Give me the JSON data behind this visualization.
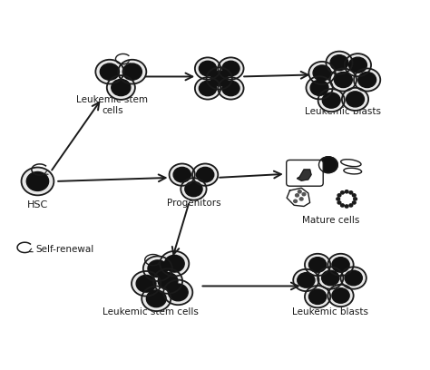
{
  "background_color": "#ffffff",
  "text_color": "#1a1a1a",
  "cell_outline_color": "#1a1a1a",
  "cell_fill_dark": "#111111",
  "cell_fill_mid": "#555555",
  "cell_halo": "#e8e8e8",
  "arrow_color": "#1a1a1a",
  "labels": {
    "hsc": "HSC",
    "leukemic_stem_top": "Leukemic stem\ncells",
    "leukemic_blasts_top": "Leukemic blasts",
    "progenitors": "Progenitors",
    "mature_cells": "Mature cells",
    "leukemic_stem_bot": "Leukemic stem cells",
    "leukemic_blasts_bot": "Leukemic blasts",
    "self_renewal": "Self-renewal"
  },
  "figsize": [
    4.74,
    4.08
  ],
  "dpi": 100
}
